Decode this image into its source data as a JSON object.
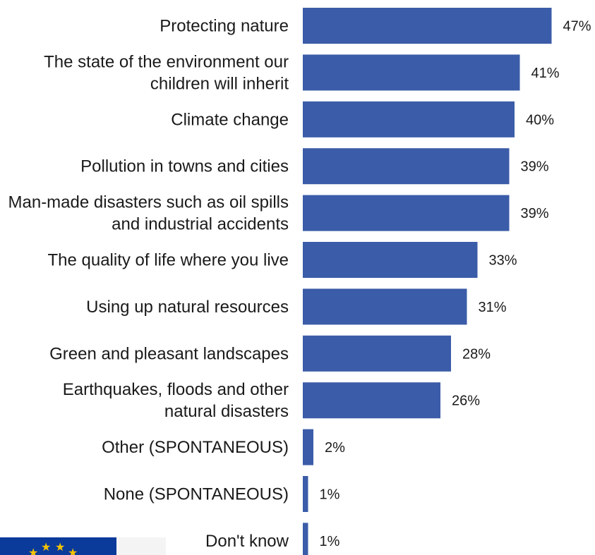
{
  "chart_data": {
    "type": "bar",
    "orientation": "horizontal",
    "bar_color": "#3b5ca8",
    "categories": [
      [
        "Protecting nature"
      ],
      [
        "The state of the environment our",
        "children will inherit"
      ],
      [
        "Climate change"
      ],
      [
        "Pollution in towns and cities"
      ],
      [
        "Man-made disasters such as oil spills",
        "and industrial accidents"
      ],
      [
        "The quality of life where you live"
      ],
      [
        "Using up natural resources"
      ],
      [
        "Green and pleasant landscapes"
      ],
      [
        "Earthquakes, floods and other",
        "natural disasters"
      ],
      [
        "Other (SPONTANEOUS)"
      ],
      [
        "None (SPONTANEOUS)"
      ],
      [
        "Don't know"
      ]
    ],
    "values": [
      47,
      41,
      40,
      39,
      39,
      33,
      31,
      28,
      26,
      2,
      1,
      1
    ],
    "value_labels": [
      "47%",
      "41%",
      "40%",
      "39%",
      "39%",
      "33%",
      "31%",
      "28%",
      "26%",
      "2%",
      "1%",
      "1%"
    ],
    "unit": "%",
    "xlim": [
      0,
      47
    ],
    "grid": false,
    "legend": "none"
  },
  "logo": {
    "icon": "eu-flag-icon",
    "color": "#0a3a9a",
    "star_color": "#f5c400"
  }
}
